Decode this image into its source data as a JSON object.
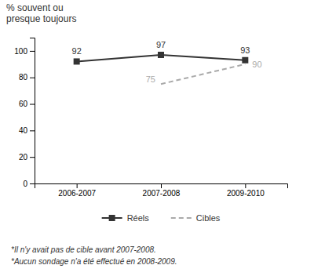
{
  "chart_data": {
    "type": "line",
    "y_label": "% souvent ou\npresque toujours",
    "categories": [
      "2006-2007",
      "2007-2008",
      "2009-2010"
    ],
    "series": [
      {
        "name": "Réels",
        "color": "#333333",
        "marker": "square",
        "line_style": "solid",
        "values": [
          92,
          97,
          93
        ]
      },
      {
        "name": "Cibles",
        "color": "#aaaaaa",
        "line_style": "dashed",
        "values": [
          null,
          75,
          90
        ]
      }
    ],
    "ylim": [
      0,
      110
    ],
    "yticks": [
      0,
      20,
      40,
      60,
      80,
      100
    ],
    "data_labels": true,
    "legend": "bottom",
    "grid": false,
    "annotations": [
      "*Il n'y avait pas de cible avant 2007-2008.",
      "*Aucun sondage n'a été effectué en 2008-2009."
    ]
  }
}
